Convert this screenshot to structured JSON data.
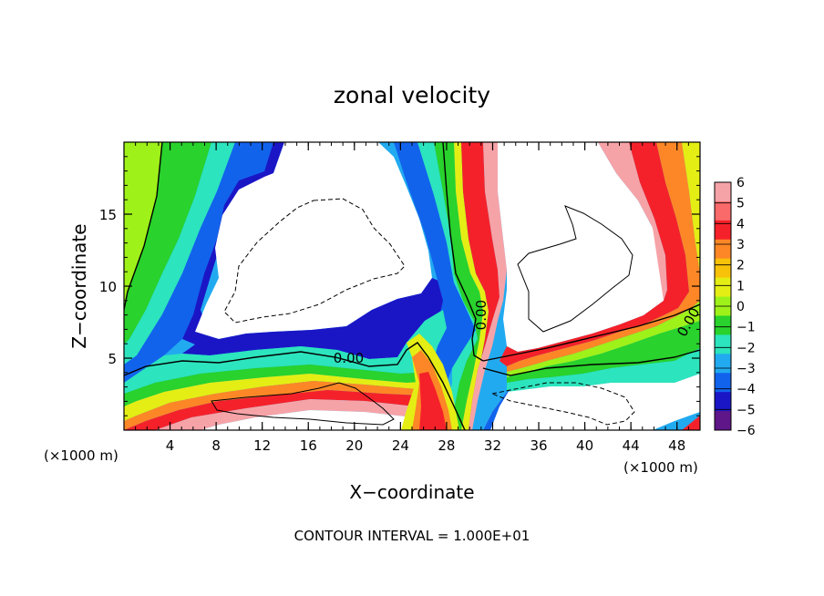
{
  "chart_data": {
    "type": "heatmap",
    "title": "zonal velocity",
    "xlabel": "X−coordinate",
    "ylabel": "Z−coordinate",
    "x_unit_note_left": "(×1000 m)",
    "x_unit_note_right": "(×1000 m)",
    "footer": "CONTOUR INTERVAL = 1.000E+01",
    "xlim": [
      0,
      50
    ],
    "ylim": [
      0,
      20
    ],
    "x_ticks": [
      4,
      8,
      12,
      16,
      20,
      24,
      28,
      32,
      36,
      40,
      44,
      48
    ],
    "x_tick_labels": [
      "4",
      "8",
      "12",
      "16",
      "20",
      "24",
      "28",
      "32",
      "36",
      "40",
      "44",
      "48"
    ],
    "y_ticks": [
      5,
      10,
      15
    ],
    "y_tick_labels": [
      "5",
      "10",
      "15"
    ],
    "contour_labels": [
      {
        "text": "0.00",
        "x": 19.5,
        "y": 5.0
      },
      {
        "text": "0.00",
        "x": 31.0,
        "y": 8.0
      },
      {
        "text": "0.00",
        "x": 49.0,
        "y": 7.5
      }
    ],
    "colorbar": {
      "levels": [
        6,
        5,
        4,
        3,
        2,
        1,
        0,
        -1,
        -2,
        -3,
        -4,
        -5,
        -6
      ],
      "labels": [
        "6",
        "5",
        "4",
        "3",
        "2",
        "1",
        "0",
        "−1",
        "−2",
        "−3",
        "−4",
        "−5",
        "−6"
      ],
      "colors": [
        "#f6a3a8",
        "#fb6a6a",
        "#f5212a",
        "#fd8726",
        "#f8c20a",
        "#e4ee14",
        "#9ef119",
        "#29d22c",
        "#2ce4bd",
        "#22aaf0",
        "#1263ec",
        "#1a16c6",
        "#5f1689"
      ]
    }
  }
}
